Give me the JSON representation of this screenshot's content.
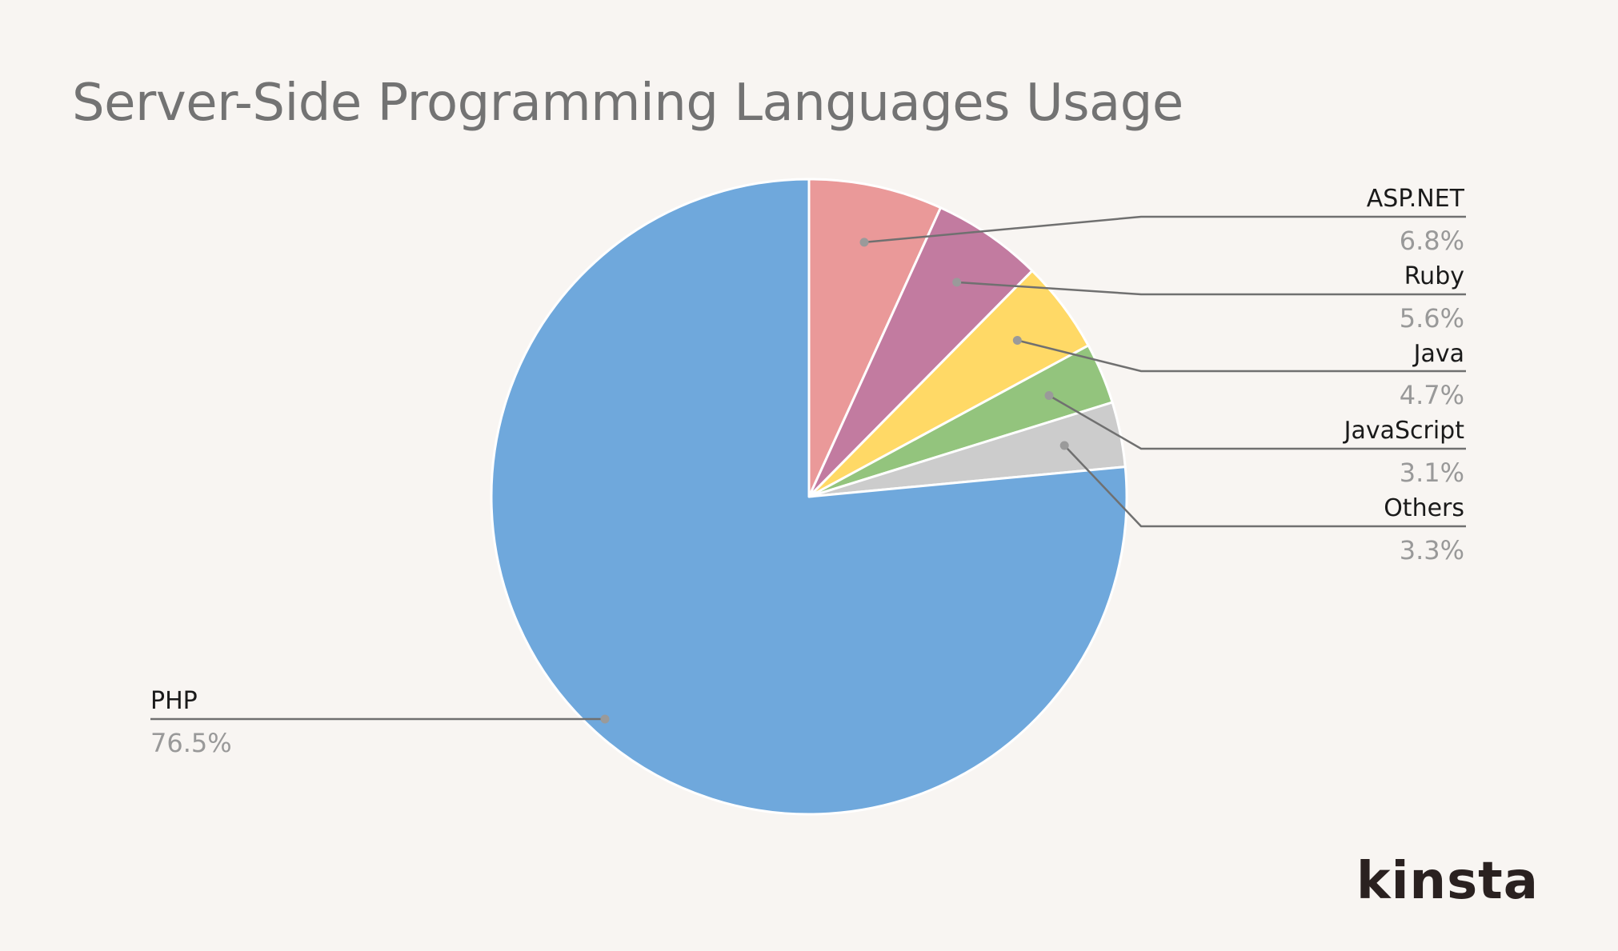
{
  "chart_data": {
    "type": "pie",
    "title": "Server-Side Programming Languages Usage",
    "unit": "%",
    "slices": [
      {
        "label": "PHP",
        "value": 76.5,
        "value_label": "76.5%",
        "color": "#6fa8dc"
      },
      {
        "label": "ASP.NET",
        "value": 6.8,
        "value_label": "6.8%",
        "color": "#ea9999"
      },
      {
        "label": "Ruby",
        "value": 5.6,
        "value_label": "5.6%",
        "color": "#c27ba0"
      },
      {
        "label": "Java",
        "value": 4.7,
        "value_label": "4.7%",
        "color": "#ffd966"
      },
      {
        "label": "JavaScript",
        "value": 3.1,
        "value_label": "3.1%",
        "color": "#93c47d"
      },
      {
        "label": "Others",
        "value": 3.3,
        "value_label": "3.3%",
        "color": "#cccccc"
      }
    ],
    "start_angle": "12 o'clock",
    "direction": "clockwise",
    "label_color": "#1a1a1a",
    "value_label_color": "#999999",
    "leader_line_color": "#707070",
    "background": "#f8f5f2"
  },
  "brand": {
    "logo_text": "kinsta"
  }
}
